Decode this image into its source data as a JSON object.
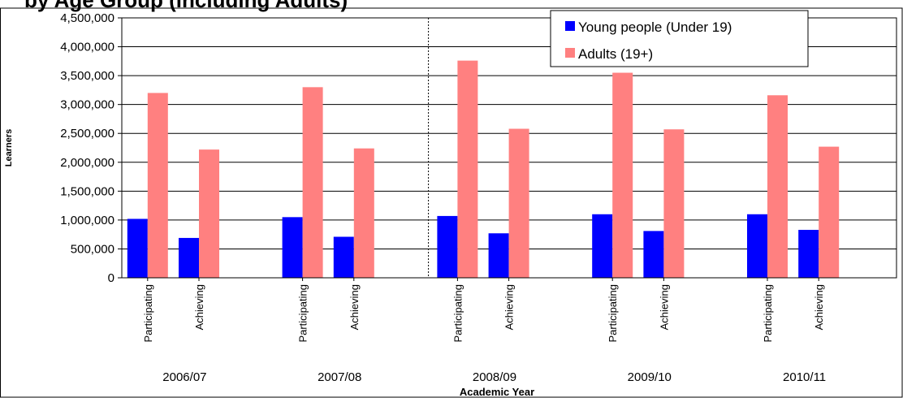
{
  "chart_data": {
    "type": "bar",
    "title": "by Age Group (including Adults)",
    "xlabel": "Academic Year",
    "ylabel": "Learners",
    "ylim": [
      0,
      4500000
    ],
    "yticks": [
      0,
      500000,
      1000000,
      1500000,
      2000000,
      2500000,
      3000000,
      3500000,
      4000000,
      4500000
    ],
    "ytick_labels": [
      "0",
      "500,000",
      "1,000,000",
      "1,500,000",
      "2,000,000",
      "2,500,000",
      "3,000,000",
      "3,500,000",
      "4,000,000",
      "4,500,000"
    ],
    "groups": [
      "2006/07",
      "2007/08",
      "2008/09",
      "2009/10",
      "2010/11"
    ],
    "subcategories": [
      "Participating",
      "Achieving"
    ],
    "series": [
      {
        "name": "Young people (Under 19)",
        "color": "#0000ff",
        "values": [
          [
            1020000,
            690000
          ],
          [
            1050000,
            710000
          ],
          [
            1070000,
            770000
          ],
          [
            1100000,
            810000
          ],
          [
            1100000,
            830000
          ]
        ]
      },
      {
        "name": "Adults (19+)",
        "color": "#ff8080",
        "values": [
          [
            3200000,
            2220000
          ],
          [
            3300000,
            2240000
          ],
          [
            3760000,
            2580000
          ],
          [
            3550000,
            2570000
          ],
          [
            3160000,
            2270000
          ]
        ]
      }
    ],
    "divider_after_group": 1,
    "grid": "horizontal",
    "legend_position": "top-right"
  }
}
